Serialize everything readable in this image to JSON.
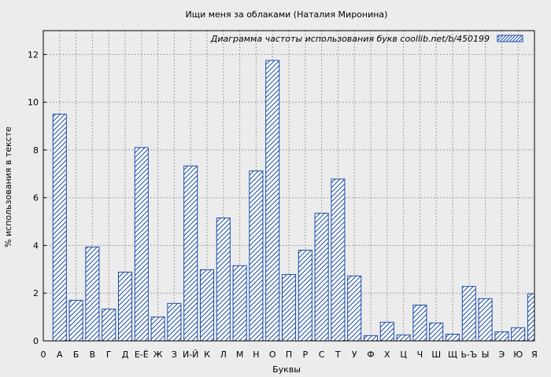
{
  "chart_data": {
    "type": "bar",
    "title": "Ищи меня за облаками (Наталия Миронина)",
    "xlabel": "Буквы",
    "ylabel": "% использования в тексте",
    "legend": "Диаграмма частоты использования букв  coollib.net/b/450199",
    "legend_position": "top-right",
    "grid": true,
    "ylim": [
      0,
      13
    ],
    "y_ticks": [
      0,
      2,
      4,
      6,
      8,
      10,
      12
    ],
    "x_tick_labels": [
      "0",
      "А",
      "Б",
      "В",
      "Г",
      "Д",
      "Е-Ё",
      "Ж",
      "З",
      "И-Й",
      "К",
      "Л",
      "М",
      "Н",
      "О",
      "П",
      "Р",
      "С",
      "Т",
      "У",
      "Ф",
      "Х",
      "Ц",
      "Ч",
      "Ш",
      "Щ",
      "Ь-Ъ",
      "Ы",
      "Э",
      "Ю",
      "Я"
    ],
    "categories": [
      "А",
      "Б",
      "В",
      "Г",
      "Д",
      "Е-Ё",
      "Ж",
      "З",
      "И-Й",
      "К",
      "Л",
      "М",
      "Н",
      "О",
      "П",
      "Р",
      "С",
      "Т",
      "У",
      "Ф",
      "Х",
      "Ц",
      "Ч",
      "Ш",
      "Щ",
      "Ь-Ъ",
      "Ы",
      "Э",
      "Ю",
      "Я"
    ],
    "values": [
      9.5,
      1.7,
      3.93,
      1.33,
      2.88,
      8.1,
      1.0,
      1.57,
      7.33,
      2.98,
      5.15,
      3.15,
      7.12,
      11.75,
      2.78,
      3.8,
      5.35,
      6.78,
      2.72,
      0.22,
      0.78,
      0.25,
      1.5,
      0.75,
      0.28,
      2.28,
      1.77,
      0.38,
      0.55,
      1.97
    ],
    "colors": {
      "bar_stroke": "#1a4ba8",
      "hatch": "#1a4ba8",
      "bar_fill": "#ffffff",
      "grid": "#a0a0a0",
      "background": "#ececec"
    }
  }
}
